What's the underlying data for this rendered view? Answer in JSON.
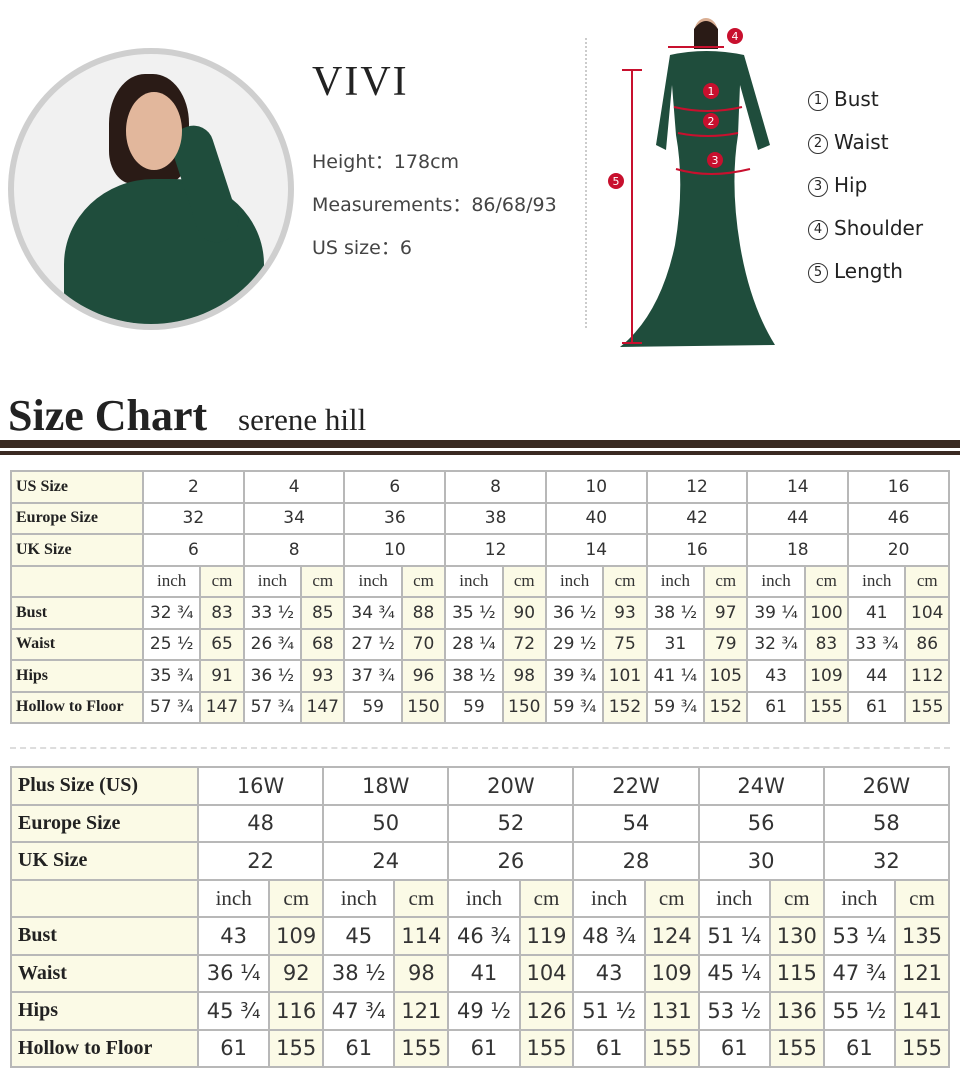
{
  "model": {
    "name": "VIVI",
    "height": "Height：178cm",
    "measurements": "Measurements：86/68/93",
    "us_size": "US size：6"
  },
  "diagram_markers": [
    "1",
    "2",
    "3",
    "4",
    "5"
  ],
  "legend": [
    {
      "num": "1",
      "label": "Bust"
    },
    {
      "num": "2",
      "label": "Waist"
    },
    {
      "num": "3",
      "label": "Hip"
    },
    {
      "num": "4",
      "label": "Shoulder"
    },
    {
      "num": "5",
      "label": "Length"
    }
  ],
  "colors": {
    "dress": "#1f4d3c",
    "marker": "#c8102e",
    "header_bar": "#3a2a22",
    "label_bg": "#fbfae6"
  },
  "size_chart": {
    "title": "Size Chart",
    "subtitle": "serene hill"
  },
  "standard_table": {
    "header_rows": [
      {
        "label": "US Size",
        "values": [
          "2",
          "4",
          "6",
          "8",
          "10",
          "12",
          "14",
          "16"
        ]
      },
      {
        "label": "Europe Size",
        "values": [
          "32",
          "34",
          "36",
          "38",
          "40",
          "42",
          "44",
          "46"
        ]
      },
      {
        "label": "UK Size",
        "values": [
          "6",
          "8",
          "10",
          "12",
          "14",
          "16",
          "18",
          "20"
        ]
      }
    ],
    "units": [
      "inch",
      "cm"
    ],
    "rows": [
      {
        "label": "Bust",
        "values": [
          "32 ¾",
          "83",
          "33 ½",
          "85",
          "34 ¾",
          "88",
          "35 ½",
          "90",
          "36 ½",
          "93",
          "38 ½",
          "97",
          "39 ¼",
          "100",
          "41",
          "104"
        ]
      },
      {
        "label": "Waist",
        "values": [
          "25 ½",
          "65",
          "26 ¾",
          "68",
          "27 ½",
          "70",
          "28 ¼",
          "72",
          "29 ½",
          "75",
          "31",
          "79",
          "32 ¾",
          "83",
          "33 ¾",
          "86"
        ]
      },
      {
        "label": "Hips",
        "values": [
          "35 ¾",
          "91",
          "36 ½",
          "93",
          "37 ¾",
          "96",
          "38 ½",
          "98",
          "39 ¾",
          "101",
          "41 ¼",
          "105",
          "43",
          "109",
          "44",
          "112"
        ]
      },
      {
        "label": "Hollow to Floor",
        "values": [
          "57 ¾",
          "147",
          "57 ¾",
          "147",
          "59",
          "150",
          "59",
          "150",
          "59 ¾",
          "152",
          "59 ¾",
          "152",
          "61",
          "155",
          "61",
          "155"
        ]
      }
    ]
  },
  "plus_table": {
    "header_rows": [
      {
        "label": "Plus Size (US)",
        "values": [
          "16W",
          "18W",
          "20W",
          "22W",
          "24W",
          "26W"
        ]
      },
      {
        "label": "Europe Size",
        "values": [
          "48",
          "50",
          "52",
          "54",
          "56",
          "58"
        ]
      },
      {
        "label": "UK Size",
        "values": [
          "22",
          "24",
          "26",
          "28",
          "30",
          "32"
        ]
      }
    ],
    "units": [
      "inch",
      "cm"
    ],
    "rows": [
      {
        "label": "Bust",
        "values": [
          "43",
          "109",
          "45",
          "114",
          "46 ¾",
          "119",
          "48 ¾",
          "124",
          "51 ¼",
          "130",
          "53 ¼",
          "135"
        ]
      },
      {
        "label": "Waist",
        "values": [
          "36 ¼",
          "92",
          "38 ½",
          "98",
          "41",
          "104",
          "43",
          "109",
          "45 ¼",
          "115",
          "47 ¾",
          "121"
        ]
      },
      {
        "label": "Hips",
        "values": [
          "45 ¾",
          "116",
          "47 ¾",
          "121",
          "49 ½",
          "126",
          "51 ½",
          "131",
          "53 ½",
          "136",
          "55 ½",
          "141"
        ]
      },
      {
        "label": "Hollow to Floor",
        "values": [
          "61",
          "155",
          "61",
          "155",
          "61",
          "155",
          "61",
          "155",
          "61",
          "155",
          "61",
          "155"
        ]
      }
    ]
  }
}
